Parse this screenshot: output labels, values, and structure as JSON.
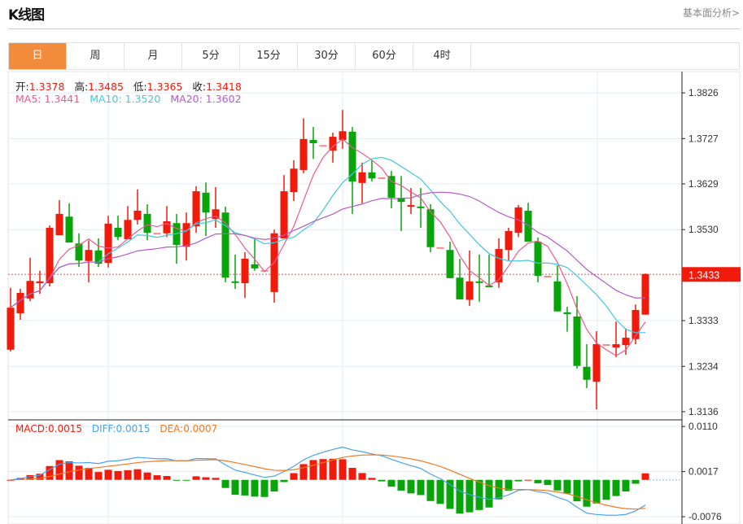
{
  "header": {
    "title": "K线图",
    "more_link": "基本面分析>"
  },
  "tabs": [
    {
      "label": "日",
      "active": true
    },
    {
      "label": "周"
    },
    {
      "label": "月"
    },
    {
      "label": "5分"
    },
    {
      "label": "15分"
    },
    {
      "label": "30分"
    },
    {
      "label": "60分"
    },
    {
      "label": "4时"
    }
  ],
  "ohlc_info": {
    "open_label": "开:",
    "open": "1.3378",
    "high_label": "高:",
    "high": "1.3485",
    "low_label": "低:",
    "low": "1.3365",
    "close_label": "收:",
    "close": "1.3418"
  },
  "ma_info": {
    "ma5": "MA5: 1.3441",
    "ma10": "MA10: 1.3520",
    "ma20": "MA20: 1.3602"
  },
  "macd_info": {
    "macd": "MACD:0.0015",
    "diff": "DIFF:0.0015",
    "dea": "DEA:0.0007"
  },
  "colors": {
    "up": "#f21a0a",
    "down": "#07a40a",
    "flat": "#f58a8a",
    "ma5": "#ec5a8c",
    "ma10": "#40c8e0",
    "ma20": "#b45cc8",
    "diff": "#4aa2ea",
    "dea": "#f07a22",
    "tab_active": "#f28b3c"
  },
  "chart_data": {
    "type": "candlestick",
    "price_axis": {
      "ticks": [
        "1.3826",
        "1.3727",
        "1.3629",
        "1.3530",
        "1.3333",
        "1.3234",
        "1.3136"
      ],
      "current": "1.3433",
      "ylim": [
        1.312,
        1.3872
      ]
    },
    "macd_axis": {
      "ticks": [
        "0.0110",
        "0.0017",
        "-0.0076"
      ],
      "ylim": [
        -0.0091,
        0.0122
      ]
    },
    "candles": [
      [
        1.327,
        1.3404,
        1.3266,
        1.3361
      ],
      [
        1.3349,
        1.3402,
        1.3335,
        1.3393
      ],
      [
        1.3381,
        1.3469,
        1.3375,
        1.3419
      ],
      [
        1.3414,
        1.3441,
        1.3391,
        1.3418
      ],
      [
        1.3414,
        1.3539,
        1.3407,
        1.3534
      ],
      [
        1.3518,
        1.3594,
        1.3518,
        1.3564
      ],
      [
        1.3558,
        1.3587,
        1.3502,
        1.3502
      ],
      [
        1.35,
        1.3522,
        1.3449,
        1.3463
      ],
      [
        1.3462,
        1.3507,
        1.3416,
        1.3486
      ],
      [
        1.3485,
        1.3511,
        1.3449,
        1.3456
      ],
      [
        1.3458,
        1.356,
        1.3448,
        1.3543
      ],
      [
        1.3534,
        1.356,
        1.3507,
        1.3514
      ],
      [
        1.3509,
        1.3581,
        1.3509,
        1.3551
      ],
      [
        1.3551,
        1.3617,
        1.3541,
        1.3571
      ],
      [
        1.3564,
        1.3585,
        1.3507,
        1.3523
      ],
      [
        1.3523,
        1.3523,
        1.3523,
        1.3523
      ],
      [
        1.3522,
        1.3581,
        1.3514,
        1.3548
      ],
      [
        1.3544,
        1.3564,
        1.3456,
        1.3497
      ],
      [
        1.3493,
        1.3567,
        1.3463,
        1.3544
      ],
      [
        1.3537,
        1.3624,
        1.3523,
        1.3613
      ],
      [
        1.361,
        1.3632,
        1.3516,
        1.3567
      ],
      [
        1.3553,
        1.3622,
        1.3534,
        1.3574
      ],
      [
        1.3567,
        1.358,
        1.3416,
        1.3426
      ],
      [
        1.3418,
        1.3476,
        1.3402,
        1.3416
      ],
      [
        1.3414,
        1.3481,
        1.3382,
        1.3467
      ],
      [
        1.3455,
        1.3511,
        1.3441,
        1.3446
      ],
      [
        1.3442,
        1.3442,
        1.3442,
        1.3442
      ],
      [
        1.3395,
        1.353,
        1.3372,
        1.3522
      ],
      [
        1.3511,
        1.3648,
        1.3511,
        1.3613
      ],
      [
        1.3611,
        1.368,
        1.3592,
        1.3662
      ],
      [
        1.3659,
        1.3771,
        1.3652,
        1.3726
      ],
      [
        1.3724,
        1.3752,
        1.3683,
        1.3717
      ],
      [
        1.3713,
        1.3713,
        1.3713,
        1.3713
      ],
      [
        1.3701,
        1.374,
        1.3675,
        1.3731
      ],
      [
        1.3724,
        1.3789,
        1.3705,
        1.3743
      ],
      [
        1.3742,
        1.3752,
        1.3564,
        1.3634
      ],
      [
        1.3631,
        1.3675,
        1.3587,
        1.3654
      ],
      [
        1.3654,
        1.368,
        1.3634,
        1.3641
      ],
      [
        1.3643,
        1.3643,
        1.3643,
        1.3643
      ],
      [
        1.3646,
        1.3657,
        1.3576,
        1.3599
      ],
      [
        1.3599,
        1.3646,
        1.3527,
        1.359
      ],
      [
        1.3581,
        1.362,
        1.3564,
        1.3583
      ],
      [
        1.358,
        1.362,
        1.3534,
        1.3578
      ],
      [
        1.3574,
        1.3585,
        1.3481,
        1.3492
      ],
      [
        1.3492,
        1.3492,
        1.3492,
        1.3492
      ],
      [
        1.3486,
        1.3504,
        1.3425,
        1.3425
      ],
      [
        1.3426,
        1.3467,
        1.3379,
        1.3379
      ],
      [
        1.3378,
        1.3485,
        1.3365,
        1.3418
      ],
      [
        1.3418,
        1.3476,
        1.3374,
        1.3416
      ],
      [
        1.3409,
        1.3476,
        1.3407,
        1.3407
      ],
      [
        1.3416,
        1.3511,
        1.3404,
        1.3488
      ],
      [
        1.3486,
        1.3534,
        1.3463,
        1.3527
      ],
      [
        1.3523,
        1.3583,
        1.3514,
        1.3578
      ],
      [
        1.3571,
        1.3588,
        1.3504,
        1.3504
      ],
      [
        1.3504,
        1.3513,
        1.3416,
        1.343
      ],
      [
        1.343,
        1.343,
        1.343,
        1.343
      ],
      [
        1.3418,
        1.3453,
        1.3353,
        1.3353
      ],
      [
        1.3351,
        1.3363,
        1.3309,
        1.3347
      ],
      [
        1.3342,
        1.3386,
        1.3229,
        1.3235
      ],
      [
        1.3233,
        1.3282,
        1.3187,
        1.3205
      ],
      [
        1.3201,
        1.331,
        1.3141,
        1.3282
      ],
      [
        1.3282,
        1.3282,
        1.3282,
        1.3282
      ],
      [
        1.3275,
        1.3331,
        1.3254,
        1.3282
      ],
      [
        1.328,
        1.3316,
        1.3259,
        1.3296
      ],
      [
        1.3293,
        1.3368,
        1.3282,
        1.3356
      ],
      [
        1.3346,
        1.3435,
        1.3346,
        1.3434
      ]
    ],
    "candle_format": "open,high,low,close",
    "moving_averages": [
      "MA5",
      "MA10",
      "MA20"
    ],
    "indicator": "MACD(12,26,9)"
  }
}
